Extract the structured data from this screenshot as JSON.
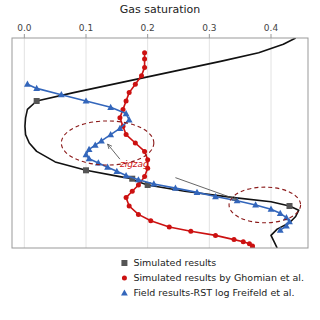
{
  "chart_data": {
    "type": "line",
    "title": "Gas saturation",
    "xlim": [
      -0.02,
      0.46
    ],
    "ylim": [
      1.0,
      0.0
    ],
    "xticks": [
      {
        "value": 0.0,
        "label": "0.0"
      },
      0.1,
      0.2,
      0.3,
      0.4
    ],
    "yticks": [],
    "tick_labels": "x",
    "grid": true,
    "legend": "lower right",
    "series": [
      {
        "type": "line",
        "color": "#111111",
        "marker": "none",
        "x": [
          0.44,
          0.42,
          0.38,
          0.32,
          0.24,
          0.16,
          0.08,
          0.02,
          0.005,
          0.002,
          0.001,
          0.002,
          0.008,
          0.02,
          0.05,
          0.1,
          0.155,
          0.175,
          0.18,
          0.2,
          0.26,
          0.34,
          0.4,
          0.43,
          0.445,
          0.44,
          0.43,
          0.41,
          0.4,
          0.405,
          0.41
        ],
        "values": [
          0.0,
          0.03,
          0.07,
          0.11,
          0.16,
          0.21,
          0.26,
          0.3,
          0.34,
          0.38,
          0.42,
          0.46,
          0.5,
          0.54,
          0.59,
          0.63,
          0.66,
          0.67,
          0.68,
          0.7,
          0.73,
          0.76,
          0.78,
          0.8,
          0.82,
          0.85,
          0.88,
          0.91,
          0.94,
          0.97,
          1.0
        ]
      },
      {
        "name": "Simulated results",
        "type": "scatter",
        "color": "#555555",
        "marker": "square",
        "x": [
          0.02,
          0.1,
          0.175,
          0.2,
          0.43
        ],
        "values": [
          0.3,
          0.63,
          0.67,
          0.7,
          0.8
        ]
      },
      {
        "name": "Simulated results by Ghomian et al.",
        "type": "line",
        "color": "#cc1111",
        "marker": "circle",
        "x": [
          0.195,
          0.195,
          0.195,
          0.19,
          0.18,
          0.17,
          0.165,
          0.16,
          0.155,
          0.16,
          0.165,
          0.18,
          0.195,
          0.2,
          0.2,
          0.195,
          0.185,
          0.175,
          0.165,
          0.17,
          0.185,
          0.205,
          0.235,
          0.27,
          0.31,
          0.34,
          0.355,
          0.365,
          0.37,
          0.37
        ],
        "values": [
          0.07,
          0.1,
          0.14,
          0.18,
          0.22,
          0.26,
          0.3,
          0.34,
          0.38,
          0.42,
          0.46,
          0.5,
          0.54,
          0.58,
          0.62,
          0.66,
          0.7,
          0.73,
          0.76,
          0.8,
          0.84,
          0.87,
          0.9,
          0.92,
          0.94,
          0.96,
          0.97,
          0.98,
          0.99,
          1.0
        ]
      },
      {
        "name": "Field results-RST log Freifeld et al.",
        "type": "line",
        "color": "#3366bb",
        "marker": "triangle",
        "x": [
          0.005,
          0.02,
          0.06,
          0.1,
          0.14,
          0.165,
          0.17,
          0.155,
          0.14,
          0.125,
          0.115,
          0.105,
          0.1,
          0.105,
          0.12,
          0.135,
          0.15,
          0.165,
          0.185,
          0.21,
          0.245,
          0.28,
          0.31,
          0.345,
          0.375,
          0.4,
          0.415,
          0.425,
          0.43,
          0.425,
          0.415
        ],
        "values": [
          0.22,
          0.24,
          0.27,
          0.3,
          0.33,
          0.36,
          0.39,
          0.43,
          0.46,
          0.49,
          0.51,
          0.53,
          0.555,
          0.575,
          0.595,
          0.615,
          0.635,
          0.655,
          0.675,
          0.695,
          0.715,
          0.735,
          0.755,
          0.775,
          0.795,
          0.815,
          0.835,
          0.855,
          0.875,
          0.895,
          0.915
        ]
      }
    ],
    "ellipses": [
      {
        "cx": 0.135,
        "cy": 0.5,
        "rx": 0.075,
        "ry": 0.105,
        "color": "#8b1a1a",
        "line_style": "dashed"
      },
      {
        "cx": 0.39,
        "cy": 0.795,
        "rx": 0.058,
        "ry": 0.085,
        "color": "#8b1a1a",
        "line_style": "dashed"
      }
    ],
    "annotations": [
      {
        "text": "zigzag",
        "color": "#cc1111",
        "x": 0.155,
        "y": 0.615,
        "arrow_x": 0.135,
        "arrow_y": 0.505
      },
      {
        "x": 0.245,
        "y": 0.665,
        "arrow_x": 0.345,
        "arrow_y": 0.77
      }
    ]
  }
}
